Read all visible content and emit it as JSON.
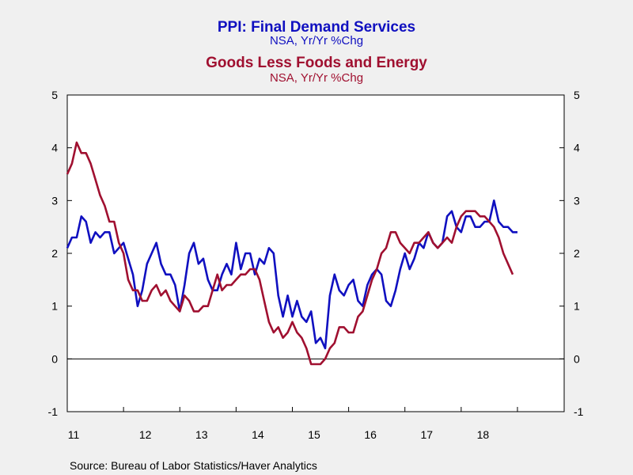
{
  "chart_data": {
    "type": "line",
    "titles": [
      {
        "title": "PPI: Final Demand Services",
        "subtitle": "NSA, Yr/Yr %Chg",
        "color": "#1010c0"
      },
      {
        "title": "Goods Less Foods and Energy",
        "subtitle": "NSA, Yr/Yr %Chg",
        "color": "#a01030"
      }
    ],
    "source": "Source:  Bureau of Labor Statistics/Haver Analytics",
    "x_start": 2011.0,
    "x_step": 0.0833333,
    "xlim": [
      2011.0,
      2019.83
    ],
    "x_tick_labels": [
      {
        "x": 2011.0,
        "label": "11"
      },
      {
        "x": 2012.0,
        "label": "12"
      },
      {
        "x": 2013.0,
        "label": "13"
      },
      {
        "x": 2014.0,
        "label": "14"
      },
      {
        "x": 2015.0,
        "label": "15"
      },
      {
        "x": 2016.0,
        "label": "16"
      },
      {
        "x": 2017.0,
        "label": "17"
      },
      {
        "x": 2018.0,
        "label": "18"
      }
    ],
    "ylim": [
      -1,
      5
    ],
    "y_ticks": [
      -1,
      0,
      1,
      2,
      3,
      4,
      5
    ],
    "zero_line": true,
    "grid": false,
    "series": [
      {
        "name": "PPI: Final Demand Services",
        "color": "#1010c0",
        "values": [
          2.1,
          2.3,
          2.3,
          2.7,
          2.6,
          2.2,
          2.4,
          2.3,
          2.4,
          2.4,
          2.0,
          2.1,
          2.2,
          1.9,
          1.6,
          1.0,
          1.3,
          1.8,
          2.0,
          2.2,
          1.8,
          1.6,
          1.6,
          1.4,
          0.9,
          1.4,
          2.0,
          2.2,
          1.8,
          1.9,
          1.5,
          1.3,
          1.3,
          1.6,
          1.8,
          1.6,
          2.2,
          1.7,
          2.0,
          2.0,
          1.6,
          1.9,
          1.8,
          2.1,
          2.0,
          1.2,
          0.8,
          1.2,
          0.8,
          1.1,
          0.8,
          0.7,
          0.9,
          0.3,
          0.4,
          0.2,
          1.2,
          1.6,
          1.3,
          1.2,
          1.4,
          1.5,
          1.1,
          1.0,
          1.4,
          1.6,
          1.7,
          1.6,
          1.1,
          1.0,
          1.3,
          1.7,
          2.0,
          1.7,
          1.9,
          2.2,
          2.1,
          2.4,
          2.2,
          2.1,
          2.2,
          2.7,
          2.8,
          2.5,
          2.4,
          2.7,
          2.7,
          2.5,
          2.5,
          2.6,
          2.6,
          3.0,
          2.6,
          2.5,
          2.5,
          2.4,
          2.4
        ]
      },
      {
        "name": "Goods Less Foods and Energy",
        "color": "#a01030",
        "values": [
          3.5,
          3.7,
          4.1,
          3.9,
          3.9,
          3.7,
          3.4,
          3.1,
          2.9,
          2.6,
          2.6,
          2.2,
          2.0,
          1.5,
          1.3,
          1.3,
          1.1,
          1.1,
          1.3,
          1.4,
          1.2,
          1.3,
          1.1,
          1.0,
          0.9,
          1.2,
          1.1,
          0.9,
          0.9,
          1.0,
          1.0,
          1.3,
          1.6,
          1.3,
          1.4,
          1.4,
          1.5,
          1.6,
          1.6,
          1.7,
          1.7,
          1.5,
          1.1,
          0.7,
          0.5,
          0.6,
          0.4,
          0.5,
          0.7,
          0.5,
          0.4,
          0.2,
          -0.1,
          -0.1,
          -0.1,
          0.0,
          0.2,
          0.3,
          0.6,
          0.6,
          0.5,
          0.5,
          0.8,
          0.9,
          1.2,
          1.5,
          1.7,
          2.0,
          2.1,
          2.4,
          2.4,
          2.2,
          2.1,
          2.0,
          2.2,
          2.2,
          2.3,
          2.4,
          2.2,
          2.1,
          2.2,
          2.3,
          2.2,
          2.5,
          2.7,
          2.8,
          2.8,
          2.8,
          2.7,
          2.7,
          2.6,
          2.5,
          2.3,
          2.0,
          1.8,
          1.6
        ]
      }
    ]
  }
}
